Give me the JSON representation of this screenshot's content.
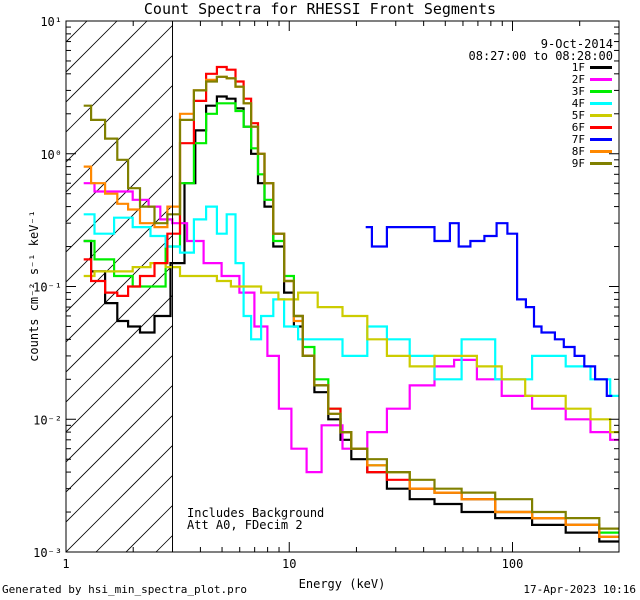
{
  "chart_data": {
    "type": "line",
    "title": "Count Spectra for RHESSI Front Segments",
    "xlabel": "Energy (keV)",
    "ylabel": "counts cm⁻² s⁻¹ keV⁻¹",
    "xscale": "log",
    "yscale": "log",
    "xlim": [
      1,
      300
    ],
    "ylim": [
      0.001,
      10
    ],
    "xticks": [
      {
        "value": 1,
        "label": "1"
      },
      {
        "value": 10,
        "label": "10"
      },
      {
        "value": 100,
        "label": "100"
      }
    ],
    "yticks": [
      {
        "value": 10,
        "label": "10¹"
      },
      {
        "value": 1,
        "label": "10⁰"
      },
      {
        "value": 0.1,
        "label": "10⁻¹"
      },
      {
        "value": 0.01,
        "label": "10⁻²"
      },
      {
        "value": 0.001,
        "label": "10⁻³"
      }
    ],
    "hatched_region": [
      1,
      3
    ],
    "date": "9-Oct-2014",
    "time_range": "08:27:00 to 08:28:00",
    "annotations": [
      "Includes Background",
      "Att A0, FDecim 2"
    ],
    "series": [
      {
        "name": "1F",
        "color": "#000000",
        "points": [
          [
            1.2,
            0.22
          ],
          [
            1.4,
            0.13
          ],
          [
            1.6,
            0.075
          ],
          [
            1.8,
            0.055
          ],
          [
            2.0,
            0.05
          ],
          [
            2.3,
            0.045
          ],
          [
            2.7,
            0.06
          ],
          [
            3.2,
            0.15
          ],
          [
            3.6,
            0.6
          ],
          [
            4.0,
            1.5
          ],
          [
            4.5,
            2.3
          ],
          [
            5.0,
            2.7
          ],
          [
            5.5,
            2.6
          ],
          [
            6.0,
            2.2
          ],
          [
            6.5,
            1.6
          ],
          [
            7.0,
            1.0
          ],
          [
            7.5,
            0.6
          ],
          [
            8.0,
            0.4
          ],
          [
            9.0,
            0.2
          ],
          [
            10,
            0.09
          ],
          [
            11,
            0.05
          ],
          [
            12,
            0.03
          ],
          [
            14,
            0.016
          ],
          [
            16,
            0.01
          ],
          [
            18,
            0.007
          ],
          [
            20,
            0.005
          ],
          [
            25,
            0.004
          ],
          [
            30,
            0.003
          ],
          [
            40,
            0.0025
          ],
          [
            50,
            0.0023
          ],
          [
            70,
            0.002
          ],
          [
            100,
            0.0018
          ],
          [
            150,
            0.0016
          ],
          [
            200,
            0.0014
          ],
          [
            300,
            0.0012
          ]
        ]
      },
      {
        "name": "2F",
        "color": "#ff00ff",
        "points": [
          [
            1.2,
            0.6
          ],
          [
            1.5,
            0.52
          ],
          [
            1.8,
            0.52
          ],
          [
            2.2,
            0.45
          ],
          [
            2.5,
            0.4
          ],
          [
            2.8,
            0.32
          ],
          [
            3.2,
            0.3
          ],
          [
            3.8,
            0.22
          ],
          [
            4.5,
            0.15
          ],
          [
            5.5,
            0.12
          ],
          [
            6.5,
            0.09
          ],
          [
            7.5,
            0.05
          ],
          [
            8.5,
            0.03
          ],
          [
            9.5,
            0.012
          ],
          [
            11,
            0.006
          ],
          [
            13,
            0.004
          ],
          [
            15,
            0.009
          ],
          [
            20,
            0.006
          ],
          [
            25,
            0.008
          ],
          [
            30,
            0.012
          ],
          [
            40,
            0.018
          ],
          [
            50,
            0.025
          ],
          [
            60,
            0.028
          ],
          [
            80,
            0.02
          ],
          [
            100,
            0.015
          ],
          [
            150,
            0.012
          ],
          [
            200,
            0.01
          ],
          [
            250,
            0.008
          ],
          [
            300,
            0.007
          ]
        ]
      },
      {
        "name": "3F",
        "color": "#00ee00",
        "points": [
          [
            1.2,
            0.22
          ],
          [
            1.5,
            0.16
          ],
          [
            1.8,
            0.12
          ],
          [
            2.2,
            0.1
          ],
          [
            2.6,
            0.1
          ],
          [
            3.0,
            0.2
          ],
          [
            3.5,
            0.6
          ],
          [
            4.0,
            1.2
          ],
          [
            4.5,
            2.0
          ],
          [
            5.0,
            2.4
          ],
          [
            5.5,
            2.4
          ],
          [
            6.0,
            2.1
          ],
          [
            6.5,
            1.6
          ],
          [
            7.0,
            1.1
          ],
          [
            7.5,
            0.7
          ],
          [
            8.0,
            0.45
          ],
          [
            9.0,
            0.22
          ],
          [
            10,
            0.12
          ],
          [
            11,
            0.06
          ],
          [
            12,
            0.035
          ],
          [
            14,
            0.02
          ],
          [
            16,
            0.012
          ],
          [
            18,
            0.008
          ],
          [
            20,
            0.006
          ],
          [
            25,
            0.0045
          ],
          [
            30,
            0.004
          ],
          [
            40,
            0.003
          ],
          [
            50,
            0.0028
          ],
          [
            70,
            0.0025
          ],
          [
            100,
            0.002
          ],
          [
            150,
            0.0018
          ],
          [
            200,
            0.0016
          ],
          [
            300,
            0.0014
          ]
        ]
      },
      {
        "name": "4F",
        "color": "#00ffff",
        "points": [
          [
            1.2,
            0.35
          ],
          [
            1.5,
            0.25
          ],
          [
            1.8,
            0.33
          ],
          [
            2.2,
            0.28
          ],
          [
            2.6,
            0.24
          ],
          [
            3.0,
            0.2
          ],
          [
            3.5,
            0.18
          ],
          [
            4.0,
            0.32
          ],
          [
            4.5,
            0.4
          ],
          [
            5.0,
            0.25
          ],
          [
            5.5,
            0.35
          ],
          [
            6.0,
            0.15
          ],
          [
            6.5,
            0.06
          ],
          [
            7.0,
            0.04
          ],
          [
            8,
            0.06
          ],
          [
            9,
            0.08
          ],
          [
            10,
            0.05
          ],
          [
            12,
            0.04
          ],
          [
            15,
            0.04
          ],
          [
            20,
            0.03
          ],
          [
            25,
            0.05
          ],
          [
            30,
            0.04
          ],
          [
            40,
            0.03
          ],
          [
            50,
            0.02
          ],
          [
            70,
            0.04
          ],
          [
            100,
            0.02
          ],
          [
            150,
            0.03
          ],
          [
            200,
            0.025
          ],
          [
            250,
            0.02
          ],
          [
            300,
            0.015
          ]
        ]
      },
      {
        "name": "5F",
        "color": "#cccc00",
        "points": [
          [
            1.2,
            0.12
          ],
          [
            1.5,
            0.13
          ],
          [
            1.8,
            0.13
          ],
          [
            2.2,
            0.14
          ],
          [
            2.6,
            0.15
          ],
          [
            3.0,
            0.14
          ],
          [
            3.5,
            0.12
          ],
          [
            4.0,
            0.12
          ],
          [
            4.5,
            0.12
          ],
          [
            5.0,
            0.11
          ],
          [
            6.0,
            0.1
          ],
          [
            7.0,
            0.1
          ],
          [
            8.0,
            0.09
          ],
          [
            10,
            0.08
          ],
          [
            12,
            0.09
          ],
          [
            15,
            0.07
          ],
          [
            20,
            0.06
          ],
          [
            25,
            0.04
          ],
          [
            30,
            0.03
          ],
          [
            40,
            0.025
          ],
          [
            50,
            0.03
          ],
          [
            60,
            0.03
          ],
          [
            80,
            0.025
          ],
          [
            100,
            0.02
          ],
          [
            130,
            0.015
          ],
          [
            150,
            0.015
          ],
          [
            200,
            0.012
          ],
          [
            250,
            0.01
          ],
          [
            300,
            0.008
          ]
        ]
      },
      {
        "name": "6F",
        "color": "#ff0000",
        "points": [
          [
            1.2,
            0.16
          ],
          [
            1.4,
            0.11
          ],
          [
            1.6,
            0.09
          ],
          [
            1.8,
            0.085
          ],
          [
            2.0,
            0.1
          ],
          [
            2.3,
            0.12
          ],
          [
            2.7,
            0.15
          ],
          [
            3.0,
            0.25
          ],
          [
            3.5,
            1.2
          ],
          [
            4.0,
            2.5
          ],
          [
            4.5,
            4.0
          ],
          [
            5.0,
            4.5
          ],
          [
            5.5,
            4.3
          ],
          [
            6.0,
            3.5
          ],
          [
            6.5,
            2.6
          ],
          [
            7.0,
            1.7
          ],
          [
            7.5,
            1.0
          ],
          [
            8.0,
            0.6
          ],
          [
            9.0,
            0.25
          ],
          [
            10,
            0.11
          ],
          [
            11,
            0.06
          ],
          [
            12,
            0.03
          ],
          [
            14,
            0.018
          ],
          [
            16,
            0.012
          ],
          [
            18,
            0.008
          ],
          [
            20,
            0.006
          ],
          [
            25,
            0.004
          ],
          [
            30,
            0.0035
          ],
          [
            40,
            0.003
          ],
          [
            50,
            0.0028
          ],
          [
            70,
            0.0025
          ],
          [
            100,
            0.002
          ],
          [
            150,
            0.0018
          ],
          [
            200,
            0.0016
          ],
          [
            300,
            0.0013
          ]
        ]
      },
      {
        "name": "7F",
        "color": "#0000ff",
        "points": [
          [
            22,
            0.28
          ],
          [
            25,
            0.2
          ],
          [
            30,
            0.28
          ],
          [
            40,
            0.28
          ],
          [
            50,
            0.22
          ],
          [
            55,
            0.3
          ],
          [
            60,
            0.2
          ],
          [
            70,
            0.22
          ],
          [
            80,
            0.24
          ],
          [
            90,
            0.3
          ],
          [
            100,
            0.25
          ],
          [
            110,
            0.08
          ],
          [
            120,
            0.07
          ],
          [
            130,
            0.05
          ],
          [
            140,
            0.045
          ],
          [
            150,
            0.045
          ],
          [
            160,
            0.04
          ],
          [
            180,
            0.035
          ],
          [
            200,
            0.03
          ],
          [
            220,
            0.025
          ],
          [
            250,
            0.02
          ],
          [
            280,
            0.015
          ]
        ]
      },
      {
        "name": "8F",
        "color": "#ff8800",
        "points": [
          [
            1.2,
            0.8
          ],
          [
            1.4,
            0.6
          ],
          [
            1.6,
            0.5
          ],
          [
            1.8,
            0.42
          ],
          [
            2.0,
            0.38
          ],
          [
            2.3,
            0.3
          ],
          [
            2.7,
            0.28
          ],
          [
            3.0,
            0.4
          ],
          [
            3.5,
            2.0
          ],
          [
            4.0,
            3.0
          ],
          [
            4.5,
            3.6
          ],
          [
            5.0,
            3.8
          ],
          [
            5.5,
            3.7
          ],
          [
            6.0,
            3.2
          ],
          [
            6.5,
            2.4
          ],
          [
            7.0,
            1.6
          ],
          [
            7.5,
            1.0
          ],
          [
            8.0,
            0.6
          ],
          [
            9.0,
            0.25
          ],
          [
            10,
            0.11
          ],
          [
            11,
            0.055
          ],
          [
            12,
            0.03
          ],
          [
            14,
            0.018
          ],
          [
            16,
            0.011
          ],
          [
            18,
            0.008
          ],
          [
            20,
            0.006
          ],
          [
            25,
            0.0045
          ],
          [
            30,
            0.004
          ],
          [
            40,
            0.003
          ],
          [
            50,
            0.0028
          ],
          [
            70,
            0.0025
          ],
          [
            100,
            0.002
          ],
          [
            150,
            0.0018
          ],
          [
            200,
            0.0016
          ],
          [
            300,
            0.0013
          ]
        ]
      },
      {
        "name": "9F",
        "color": "#808000",
        "points": [
          [
            1.2,
            2.3
          ],
          [
            1.4,
            1.8
          ],
          [
            1.6,
            1.3
          ],
          [
            1.8,
            0.9
          ],
          [
            2.0,
            0.55
          ],
          [
            2.3,
            0.4
          ],
          [
            2.7,
            0.3
          ],
          [
            3.0,
            0.35
          ],
          [
            3.5,
            1.8
          ],
          [
            4.0,
            3.0
          ],
          [
            4.5,
            3.5
          ],
          [
            5.0,
            3.8
          ],
          [
            5.5,
            3.7
          ],
          [
            6.0,
            3.2
          ],
          [
            6.5,
            2.4
          ],
          [
            7.0,
            1.6
          ],
          [
            7.5,
            1.0
          ],
          [
            8.0,
            0.6
          ],
          [
            9.0,
            0.25
          ],
          [
            10,
            0.11
          ],
          [
            11,
            0.06
          ],
          [
            12,
            0.03
          ],
          [
            14,
            0.018
          ],
          [
            16,
            0.011
          ],
          [
            18,
            0.008
          ],
          [
            20,
            0.006
          ],
          [
            25,
            0.005
          ],
          [
            30,
            0.004
          ],
          [
            40,
            0.0035
          ],
          [
            50,
            0.003
          ],
          [
            70,
            0.0028
          ],
          [
            100,
            0.0025
          ],
          [
            150,
            0.002
          ],
          [
            200,
            0.0018
          ],
          [
            300,
            0.0015
          ]
        ]
      }
    ]
  },
  "footer": {
    "generated_by": "Generated by hsi_min_spectra_plot.pro",
    "timestamp": "17-Apr-2023 10:16"
  }
}
